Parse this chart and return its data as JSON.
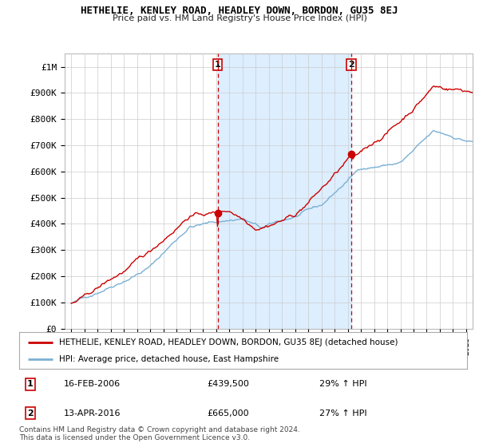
{
  "title": "HETHELIE, KENLEY ROAD, HEADLEY DOWN, BORDON, GU35 8EJ",
  "subtitle": "Price paid vs. HM Land Registry's House Price Index (HPI)",
  "legend_label_red": "HETHELIE, KENLEY ROAD, HEADLEY DOWN, BORDON, GU35 8EJ (detached house)",
  "legend_label_blue": "HPI: Average price, detached house, East Hampshire",
  "transaction1_date": "16-FEB-2006",
  "transaction1_price": "£439,500",
  "transaction1_hpi": "29% ↑ HPI",
  "transaction2_date": "13-APR-2016",
  "transaction2_price": "£665,000",
  "transaction2_hpi": "27% ↑ HPI",
  "footnote": "Contains HM Land Registry data © Crown copyright and database right 2024.\nThis data is licensed under the Open Government Licence v3.0.",
  "red_color": "#cc0000",
  "blue_color": "#7bb0d4",
  "shade_color": "#ddeeff",
  "vline_color": "#cc0000",
  "background_color": "#ffffff",
  "grid_color": "#cccccc",
  "ylim_bottom": 0,
  "ylim_top": 1050000,
  "yticks": [
    0,
    100000,
    200000,
    300000,
    400000,
    500000,
    600000,
    700000,
    800000,
    900000,
    1000000
  ],
  "ytick_labels": [
    "£0",
    "£100K",
    "£200K",
    "£300K",
    "£400K",
    "£500K",
    "£600K",
    "£700K",
    "£800K",
    "£900K",
    "£1M"
  ],
  "transaction1_x": 2006.12,
  "transaction1_y": 439500,
  "transaction2_x": 2016.28,
  "transaction2_y": 665000,
  "xmin": 1994.5,
  "xmax": 2025.5
}
